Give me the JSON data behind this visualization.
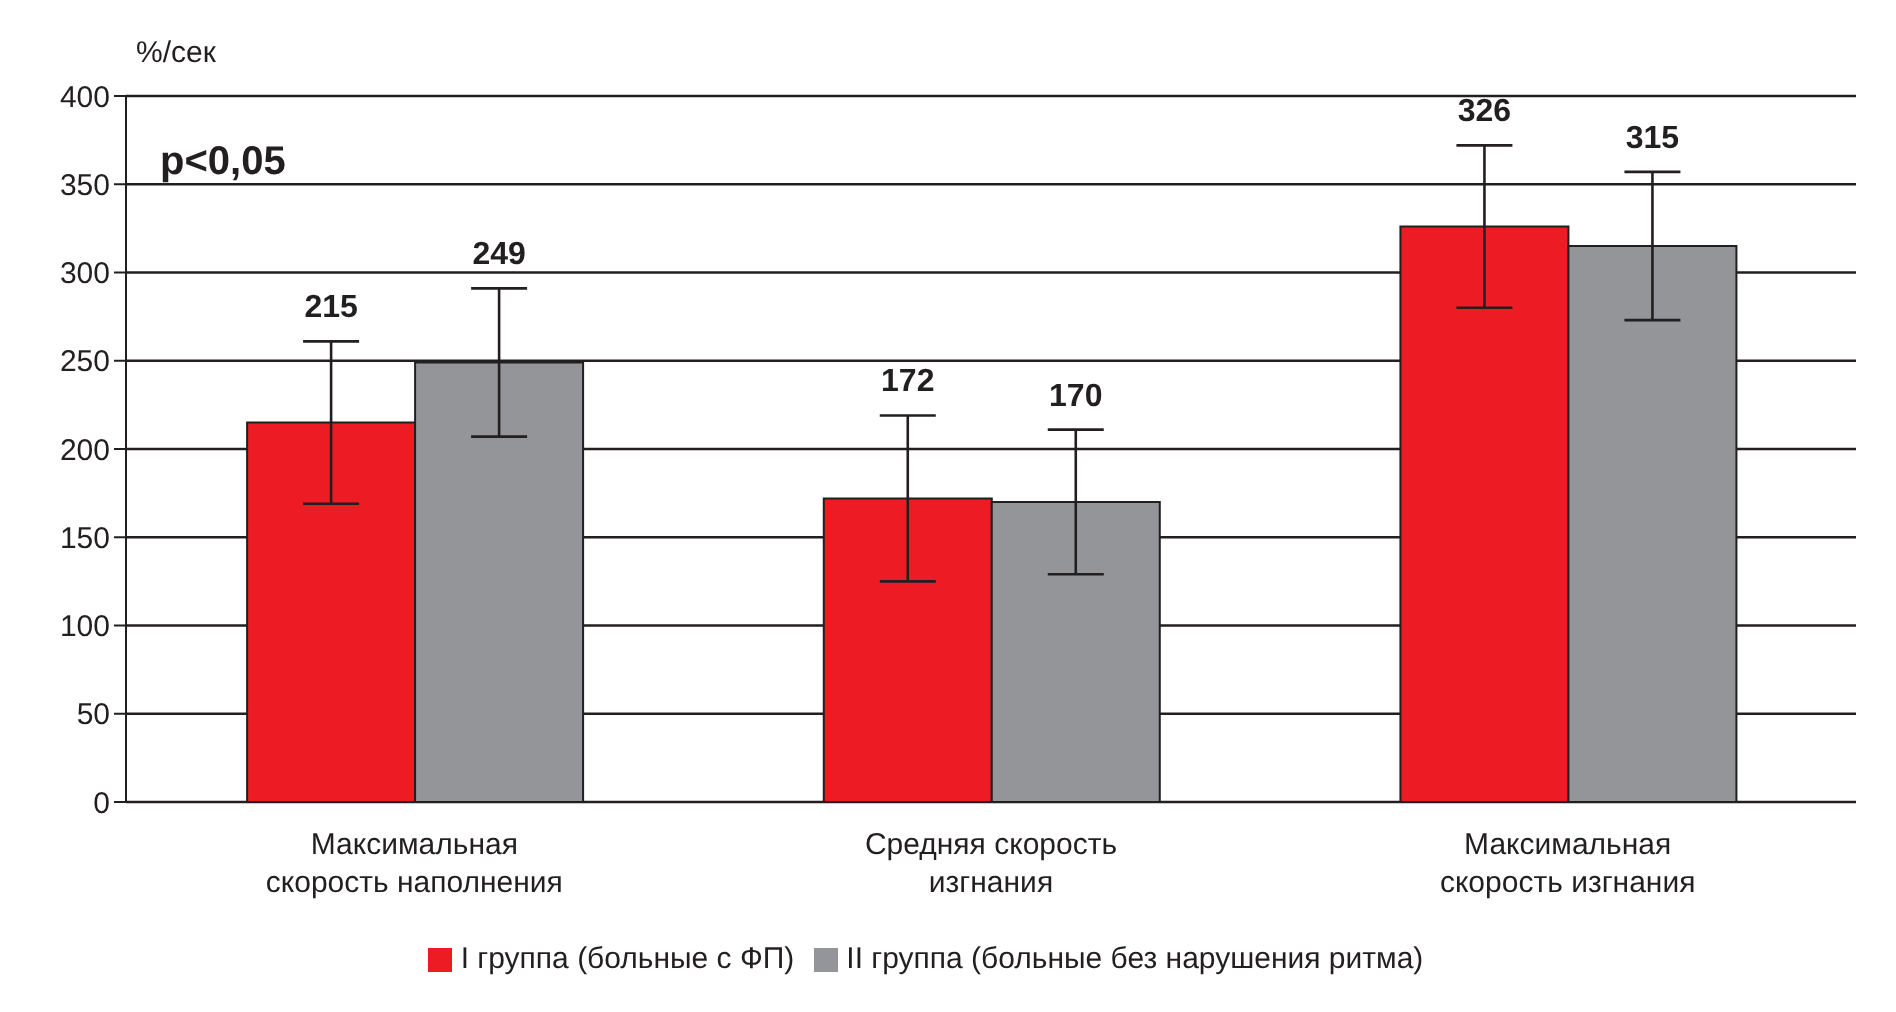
{
  "chart_data": {
    "type": "bar",
    "ylabel": "%/сек",
    "categories": [
      "Максимальная скорость наполнения",
      "Средняя скорость изгнания",
      "Максимальная скорость изгнания"
    ],
    "series": [
      {
        "name": "I группа (больные с ФП)",
        "color": "#ed1c24",
        "values": [
          215,
          172,
          326
        ],
        "errors": [
          46,
          47,
          46
        ]
      },
      {
        "name": "II группа (больные без нарушения ритма)",
        "color": "#939598",
        "values": [
          249,
          170,
          315
        ],
        "errors": [
          42,
          41,
          42
        ]
      }
    ],
    "ylim": [
      0,
      400
    ],
    "yticks": [
      0,
      50,
      100,
      150,
      200,
      250,
      300,
      350,
      400
    ],
    "grid": "y",
    "legend": "bottom",
    "data_labels": true,
    "annotations": [
      "p<0,05"
    ]
  }
}
